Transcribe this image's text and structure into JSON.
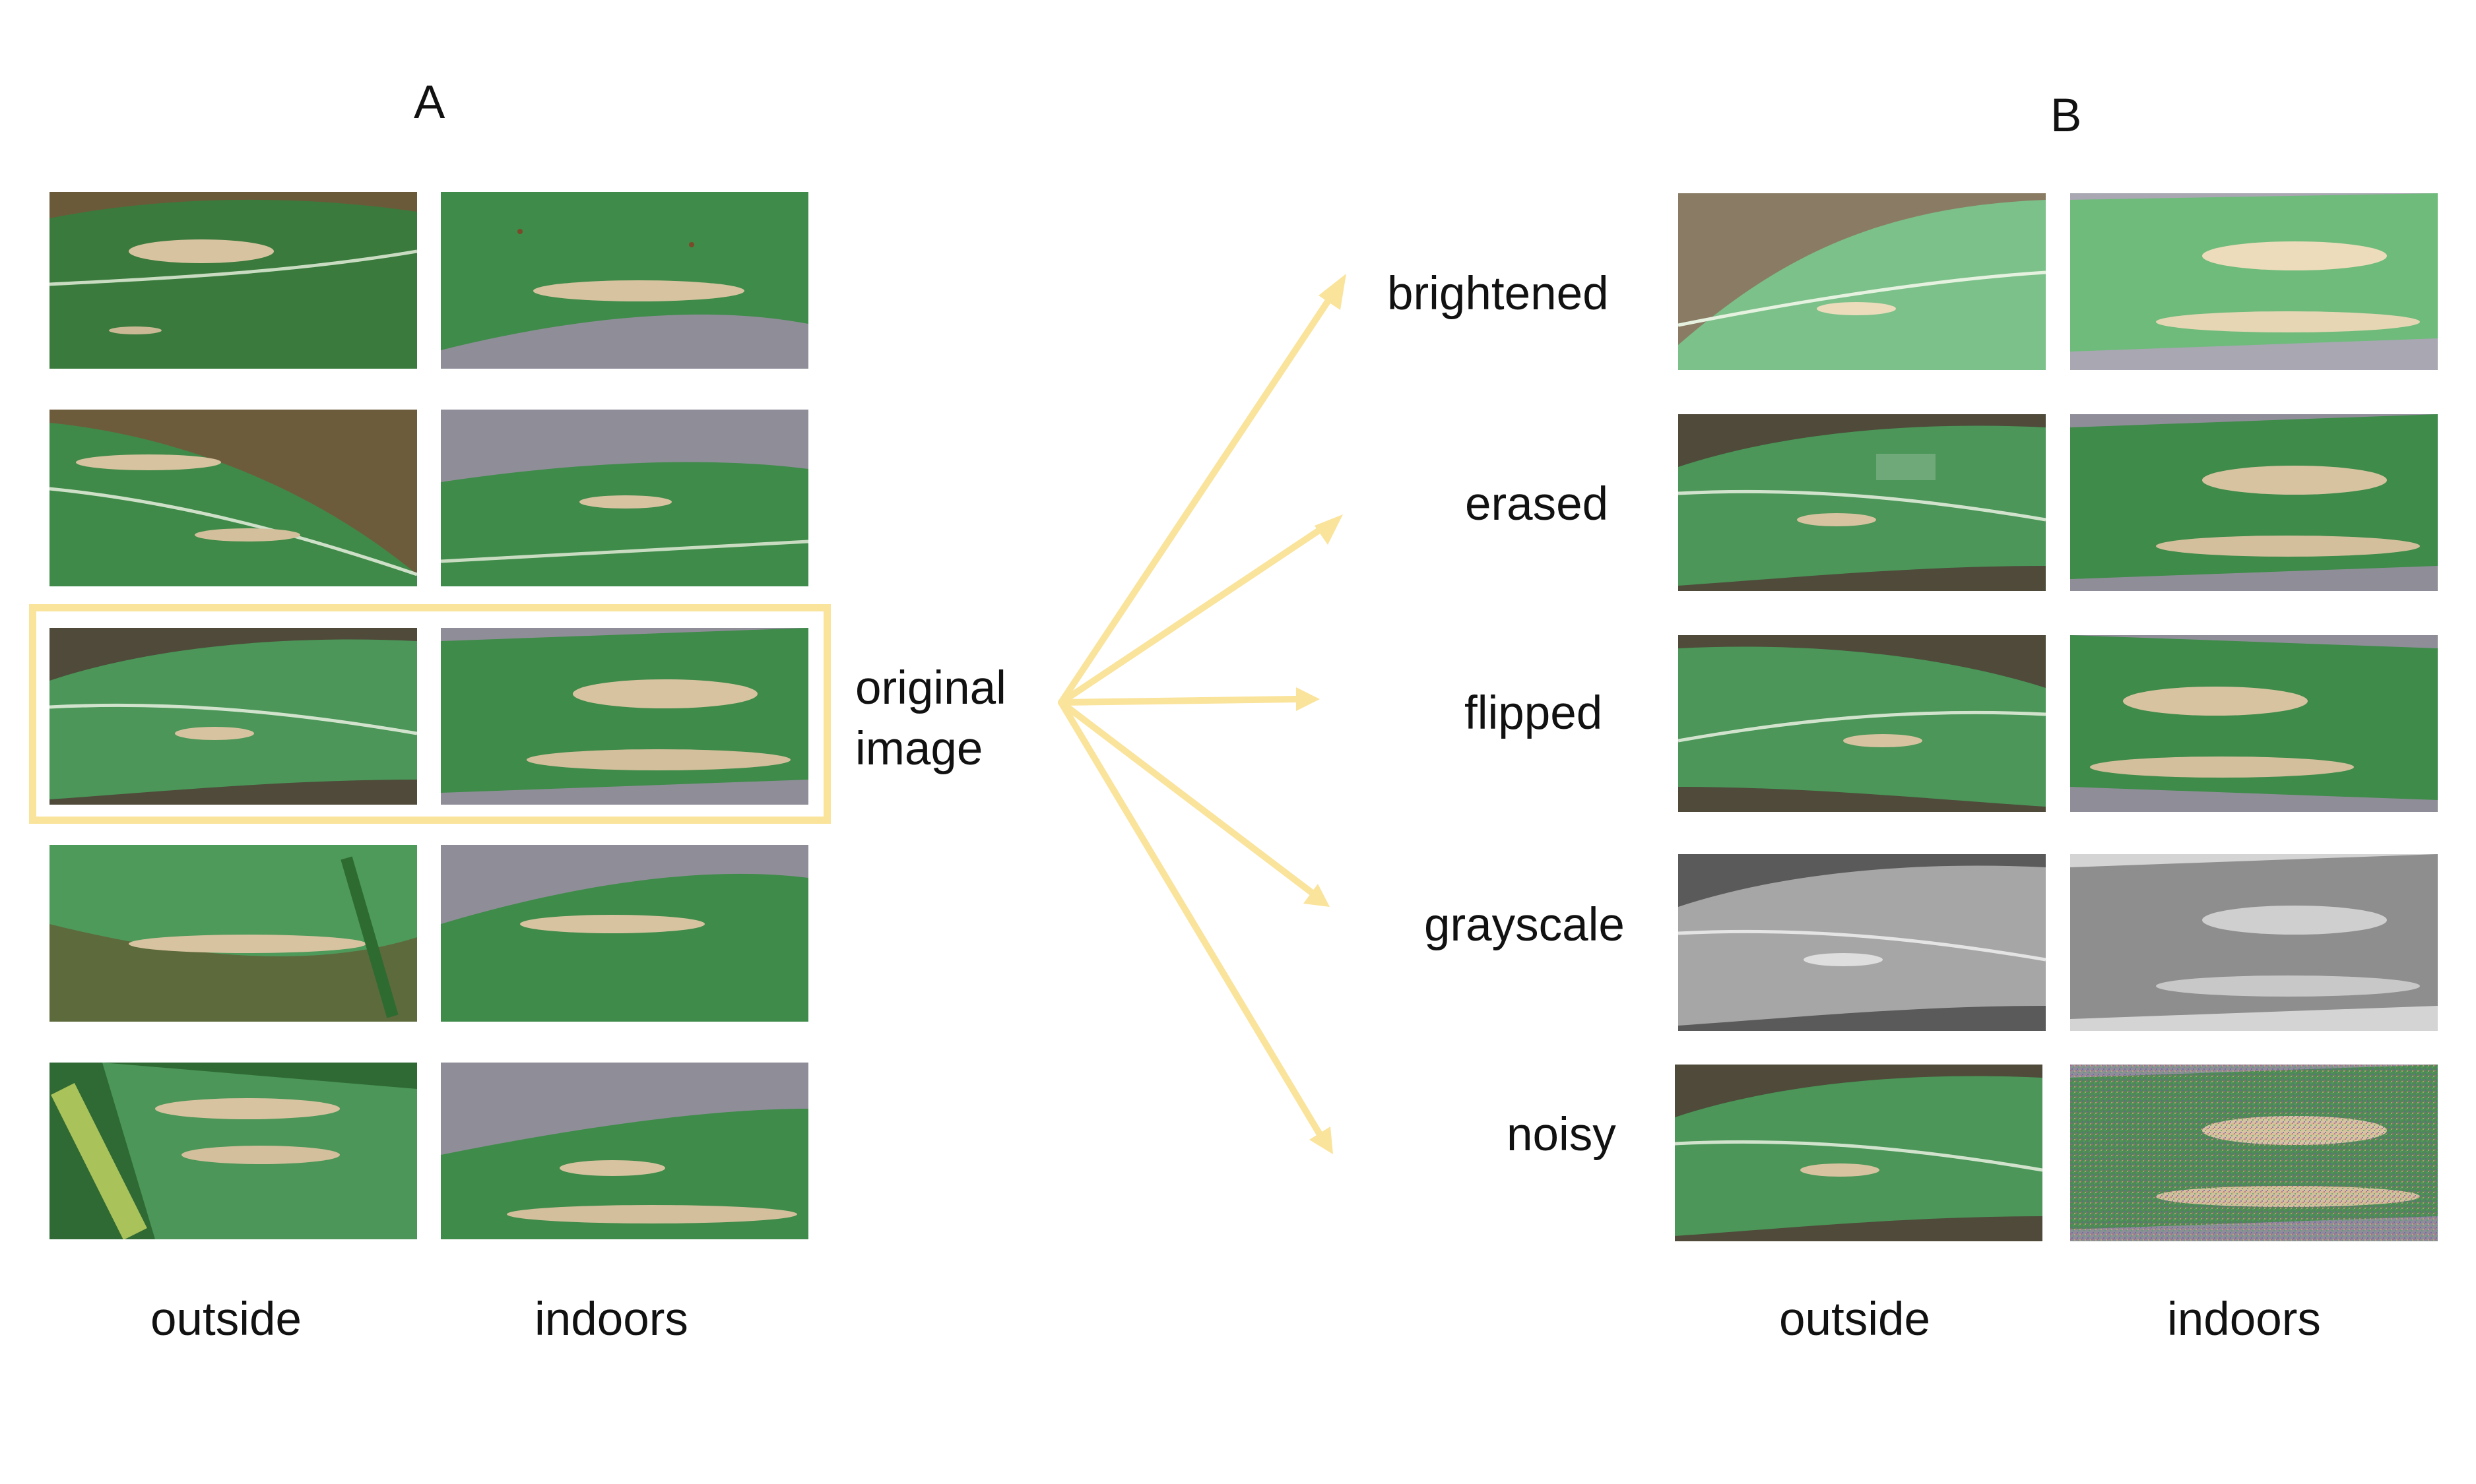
{
  "panel_a": {
    "letter": "A",
    "column_labels": [
      "outside",
      "indoors"
    ],
    "highlight_label": [
      "original",
      "image"
    ],
    "rows": [
      {
        "outside": "leaf photo, field background",
        "indoors": "leaf photo, gray background"
      },
      {
        "outside": "leaf photo, field background",
        "indoors": "leaf photo, gray background"
      },
      {
        "outside": "leaf photo, field background",
        "indoors": "leaf photo, gray background"
      },
      {
        "outside": "leaf photo, field background",
        "indoors": "leaf photo, gray background"
      },
      {
        "outside": "leaf photo, field background",
        "indoors": "leaf photo, gray background"
      }
    ]
  },
  "panel_b": {
    "letter": "B",
    "column_labels": [
      "outside",
      "indoors"
    ],
    "augmentations": [
      "brightened",
      "erased",
      "flipped",
      "grayscale",
      "noisy"
    ]
  },
  "colors": {
    "arrow": "#fae39a",
    "highlight_box": "#fae39a",
    "leaf_green": "#3e8a4a",
    "lesion_tan": "#d8c3a0",
    "indoor_background": "#8f8e98"
  },
  "icons": [
    "arrow-icon"
  ]
}
